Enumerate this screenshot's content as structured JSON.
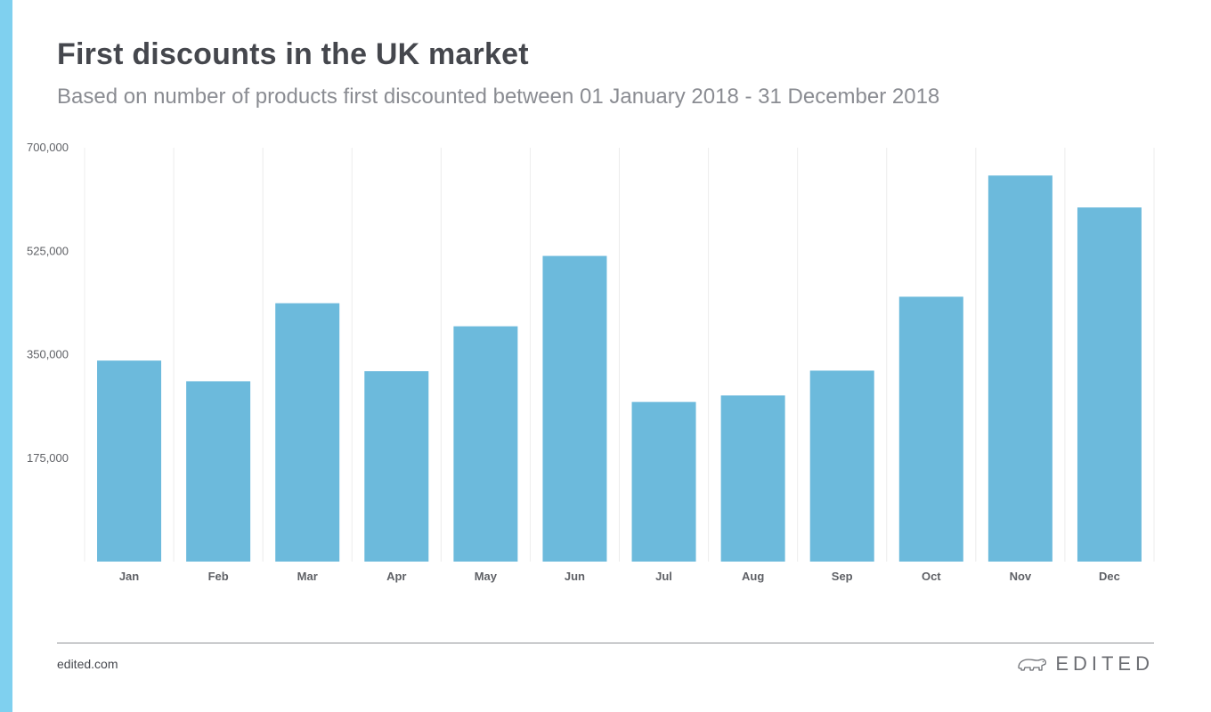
{
  "header": {
    "title": "First discounts in the UK market",
    "subtitle": "Based on number of products first discounted between 01 January 2018 - 31 December 2018"
  },
  "footer": {
    "site": "edited.com",
    "brand": "EDITED"
  },
  "colors": {
    "bar": "#6cbadc",
    "accent_stripe": "#7fd0ef",
    "gridline": "#ececec"
  },
  "icons": {
    "brand_logo": "polar-bear-icon"
  },
  "chart_data": {
    "type": "bar",
    "title": "First discounts in the UK market",
    "subtitle": "Based on number of products first discounted between 01 January 2018 - 31 December 2018",
    "xlabel": "",
    "ylabel": "",
    "categories": [
      "Jan",
      "Feb",
      "Mar",
      "Apr",
      "May",
      "Jun",
      "Jul",
      "Aug",
      "Sep",
      "Oct",
      "Nov",
      "Dec"
    ],
    "values": [
      340000,
      305000,
      437000,
      322000,
      398000,
      517000,
      270000,
      281000,
      323000,
      448000,
      653000,
      599000
    ],
    "ylim": [
      0,
      700000
    ],
    "yticks": [
      175000,
      350000,
      525000,
      700000
    ],
    "ytick_labels": [
      "175,000",
      "350,000",
      "525,000",
      "700,000"
    ],
    "grid": "vertical",
    "legend": "none"
  }
}
